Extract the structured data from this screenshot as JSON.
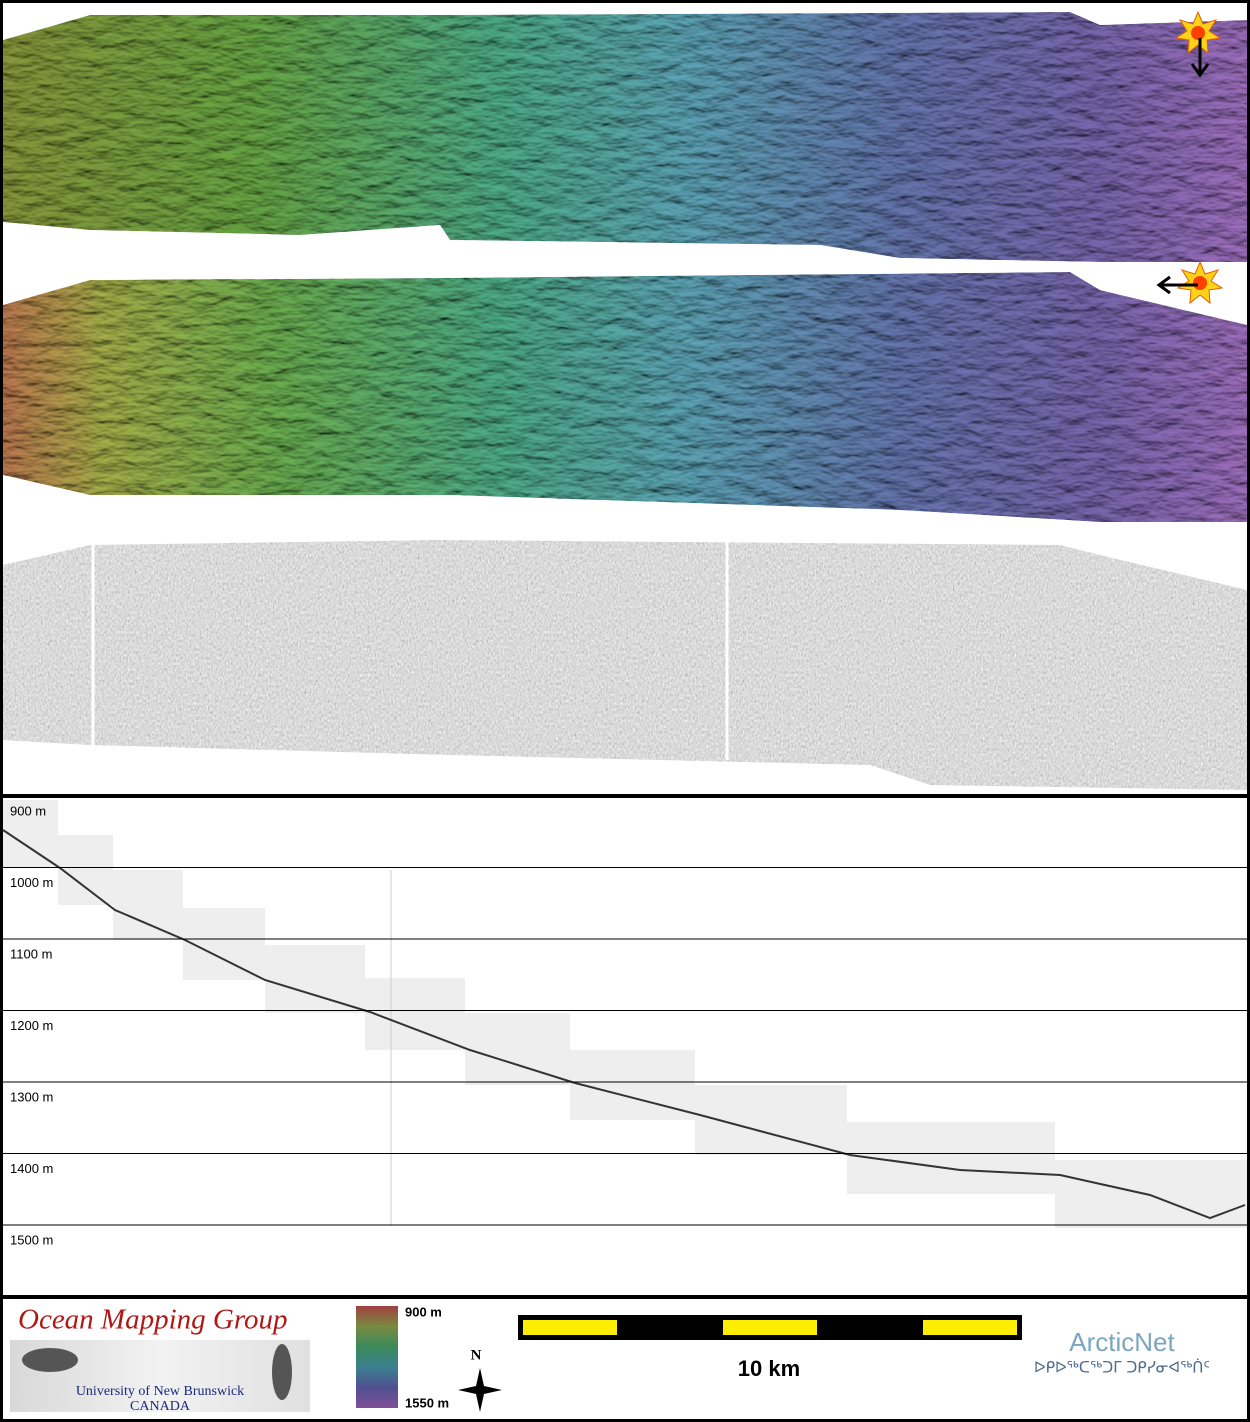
{
  "profile": {
    "depth_labels": [
      "900 m",
      "1000 m",
      "1100 m",
      "1200 m",
      "1300 m",
      "1400 m",
      "1500 m"
    ]
  },
  "footer": {
    "logo_title": "Ocean Mapping Group",
    "logo_university": "University of New Brunswick",
    "logo_country": "CANADA",
    "colorbar_top": "900 m",
    "colorbar_bottom": "1550 m",
    "compass": "N",
    "scale_label": "10 km",
    "partner": "ArcticNet",
    "partner_syllabics": "ᐅᑭᐅᖅᑕᖅᑐᒥ ᑐᑭᓯᓂᐊᖅᑏᑦ"
  }
}
